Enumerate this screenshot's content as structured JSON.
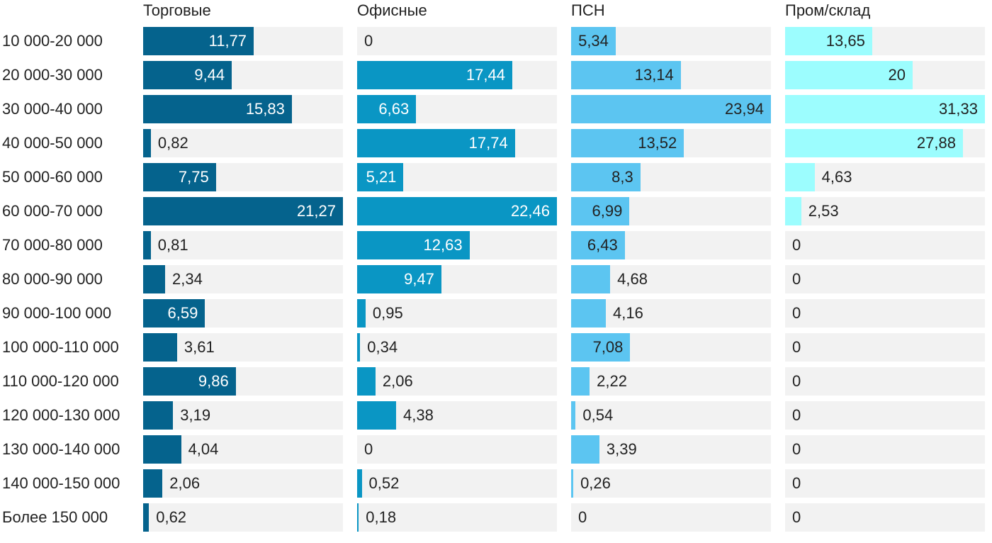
{
  "chart_data": {
    "type": "bar",
    "orientation": "horizontal",
    "layout": "small-multiples",
    "categories": [
      "10 000-20 000",
      "20 000-30 000",
      "30 000-40 000",
      "40 000-50 000",
      "50 000-60 000",
      "60 000-70 000",
      "70 000-80 000",
      "80 000-90 000",
      "90 000-100 000",
      "100 000-110 000",
      "110 000-120 000",
      "120 000-130 000",
      "130 000-140 000",
      "140 000-150 000",
      "Более 150 000"
    ],
    "series": [
      {
        "name": "Торговые",
        "color": "#05638d",
        "label_inside_color": "#ffffff",
        "values": [
          11.77,
          9.44,
          15.83,
          0.82,
          7.75,
          21.27,
          0.81,
          2.34,
          6.59,
          3.61,
          9.86,
          3.19,
          4.04,
          2.06,
          0.62
        ],
        "labels": [
          "11,77",
          "9,44",
          "15,83",
          "0,82",
          "7,75",
          "21,27",
          "0,81",
          "2,34",
          "6,59",
          "3,61",
          "9,86",
          "3,19",
          "4,04",
          "2,06",
          "0,62"
        ]
      },
      {
        "name": "Офисные",
        "color": "#0a96c4",
        "label_inside_color": "#ffffff",
        "values": [
          0,
          17.44,
          6.63,
          17.74,
          5.21,
          22.46,
          12.63,
          9.47,
          0.95,
          0.34,
          2.06,
          4.38,
          0,
          0.52,
          0.18
        ],
        "labels": [
          "0",
          "17,44",
          "6,63",
          "17,74",
          "5,21",
          "22,46",
          "12,63",
          "9,47",
          "0,95",
          "0,34",
          "2,06",
          "4,38",
          "0",
          "0,52",
          "0,18"
        ]
      },
      {
        "name": "ПСН",
        "color": "#5cc5f1",
        "label_inside_color": "#222222",
        "values": [
          5.34,
          13.14,
          23.94,
          13.52,
          8.3,
          6.99,
          6.43,
          4.68,
          4.16,
          7.08,
          2.22,
          0.54,
          3.39,
          0.26,
          0
        ],
        "labels": [
          "5,34",
          "13,14",
          "23,94",
          "13,52",
          "8,3",
          "6,99",
          "6,43",
          "4,68",
          "4,16",
          "7,08",
          "2,22",
          "0,54",
          "3,39",
          "0,26",
          "0"
        ]
      },
      {
        "name": "Пром/склад",
        "color": "#9cfdfe",
        "label_inside_color": "#222222",
        "values": [
          13.65,
          20,
          31.33,
          27.88,
          4.63,
          2.53,
          0,
          0,
          0,
          0,
          0,
          0,
          0,
          0,
          0
        ],
        "labels": [
          "13,65",
          "20",
          "31,33",
          "27,88",
          "4,63",
          "2,53",
          "0",
          "0",
          "0",
          "0",
          "0",
          "0",
          "0",
          "0",
          "0"
        ]
      }
    ],
    "xlabel": "",
    "ylabel": "",
    "title": "",
    "track_color": "#f2f2f2",
    "label_outside_color": "#222222"
  }
}
